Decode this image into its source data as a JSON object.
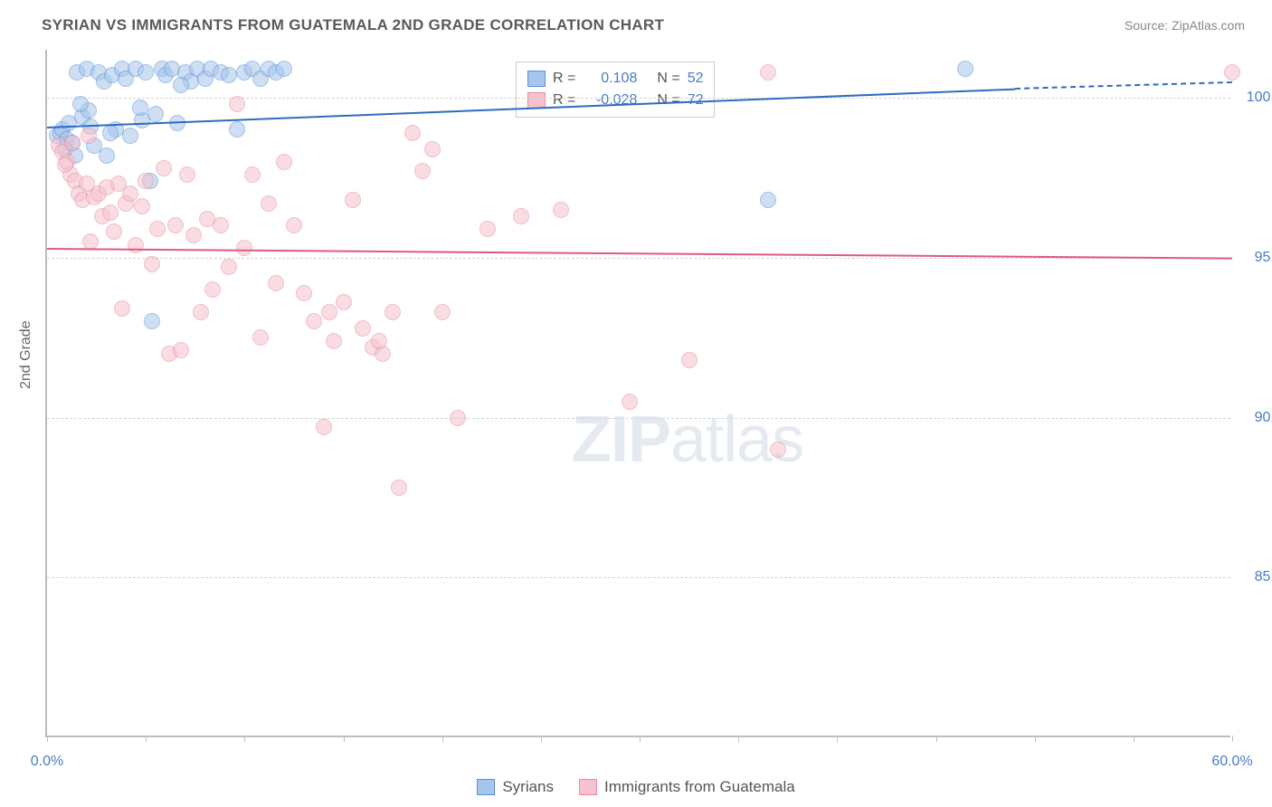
{
  "title": "SYRIAN VS IMMIGRANTS FROM GUATEMALA 2ND GRADE CORRELATION CHART",
  "source": "Source: ZipAtlas.com",
  "y_axis_label": "2nd Grade",
  "watermark_zip": "ZIP",
  "watermark_atlas": "atlas",
  "chart": {
    "type": "scatter",
    "xlim": [
      0,
      60
    ],
    "ylim": [
      80,
      101.5
    ],
    "x_ticks": [
      0,
      5,
      10,
      15,
      20,
      25,
      30,
      35,
      40,
      45,
      50,
      55,
      60
    ],
    "x_tick_labels": {
      "0": "0.0%",
      "60": "60.0%"
    },
    "y_grid": [
      85,
      90,
      95,
      100
    ],
    "y_tick_labels": {
      "85": "85.0%",
      "90": "90.0%",
      "95": "95.0%",
      "100": "100.0%"
    },
    "background_color": "#ffffff",
    "grid_color": "#d4d4d4",
    "axis_color": "#bdbdbd",
    "label_color": "#4a7bc8",
    "marker_radius": 9,
    "marker_opacity": 0.55
  },
  "series": [
    {
      "name": "Syrians",
      "fill_color": "#a7c5ec",
      "stroke_color": "#5a8fd4",
      "line_color": "#2d6bc0",
      "R": "0.108",
      "N": "52",
      "trend": {
        "x1": 0,
        "y1": 99.1,
        "x2": 49,
        "y2": 100.3,
        "dash_x2": 60,
        "dash_y2": 100.5
      },
      "points": [
        [
          0.5,
          98.8
        ],
        [
          0.7,
          98.9
        ],
        [
          0.8,
          99.0
        ],
        [
          1.0,
          98.7
        ],
        [
          1.1,
          99.2
        ],
        [
          1.3,
          98.6
        ],
        [
          1.5,
          100.8
        ],
        [
          1.8,
          99.4
        ],
        [
          2.0,
          100.9
        ],
        [
          2.2,
          99.1
        ],
        [
          2.4,
          98.5
        ],
        [
          2.6,
          100.8
        ],
        [
          2.9,
          100.5
        ],
        [
          3.0,
          98.2
        ],
        [
          3.3,
          100.7
        ],
        [
          3.5,
          99.0
        ],
        [
          3.8,
          100.9
        ],
        [
          4.0,
          100.6
        ],
        [
          4.2,
          98.8
        ],
        [
          4.5,
          100.9
        ],
        [
          4.8,
          99.3
        ],
        [
          5.0,
          100.8
        ],
        [
          5.2,
          97.4
        ],
        [
          5.5,
          99.5
        ],
        [
          5.8,
          100.9
        ],
        [
          6.0,
          100.7
        ],
        [
          6.3,
          100.9
        ],
        [
          6.6,
          99.2
        ],
        [
          7.0,
          100.8
        ],
        [
          7.3,
          100.5
        ],
        [
          7.6,
          100.9
        ],
        [
          8.0,
          100.6
        ],
        [
          8.3,
          100.9
        ],
        [
          8.8,
          100.8
        ],
        [
          9.2,
          100.7
        ],
        [
          9.6,
          99.0
        ],
        [
          10.0,
          100.8
        ],
        [
          10.4,
          100.9
        ],
        [
          10.8,
          100.6
        ],
        [
          11.2,
          100.9
        ],
        [
          11.6,
          100.8
        ],
        [
          12.0,
          100.9
        ],
        [
          5.3,
          93.0
        ],
        [
          0.9,
          98.4
        ],
        [
          1.4,
          98.2
        ],
        [
          2.1,
          99.6
        ],
        [
          3.2,
          98.9
        ],
        [
          4.7,
          99.7
        ],
        [
          36.5,
          96.8
        ],
        [
          46.5,
          100.9
        ],
        [
          6.8,
          100.4
        ],
        [
          1.7,
          99.8
        ]
      ]
    },
    {
      "name": "Immigrants from Guatemala",
      "fill_color": "#f5c2cd",
      "stroke_color": "#e68ba0",
      "line_color": "#e05a7e",
      "R": "-0.028",
      "N": "72",
      "trend": {
        "x1": 0,
        "y1": 95.3,
        "x2": 60,
        "y2": 95.0
      },
      "points": [
        [
          0.6,
          98.5
        ],
        [
          0.8,
          98.3
        ],
        [
          1.0,
          98.0
        ],
        [
          1.2,
          97.6
        ],
        [
          1.4,
          97.4
        ],
        [
          1.6,
          97.0
        ],
        [
          1.8,
          96.8
        ],
        [
          2.0,
          97.3
        ],
        [
          2.2,
          95.5
        ],
        [
          2.4,
          96.9
        ],
        [
          2.6,
          97.0
        ],
        [
          2.8,
          96.3
        ],
        [
          3.0,
          97.2
        ],
        [
          3.2,
          96.4
        ],
        [
          3.4,
          95.8
        ],
        [
          3.6,
          97.3
        ],
        [
          3.8,
          93.4
        ],
        [
          4.0,
          96.7
        ],
        [
          4.2,
          97.0
        ],
        [
          4.5,
          95.4
        ],
        [
          4.8,
          96.6
        ],
        [
          5.0,
          97.4
        ],
        [
          5.3,
          94.8
        ],
        [
          5.6,
          95.9
        ],
        [
          5.9,
          97.8
        ],
        [
          6.2,
          92.0
        ],
        [
          6.5,
          96.0
        ],
        [
          6.8,
          92.1
        ],
        [
          7.1,
          97.6
        ],
        [
          7.4,
          95.7
        ],
        [
          7.8,
          93.3
        ],
        [
          8.1,
          96.2
        ],
        [
          8.4,
          94.0
        ],
        [
          8.8,
          96.0
        ],
        [
          9.2,
          94.7
        ],
        [
          9.6,
          99.8
        ],
        [
          10.0,
          95.3
        ],
        [
          10.4,
          97.6
        ],
        [
          10.8,
          92.5
        ],
        [
          11.2,
          96.7
        ],
        [
          11.6,
          94.2
        ],
        [
          12.0,
          98.0
        ],
        [
          12.5,
          96.0
        ],
        [
          13.0,
          93.9
        ],
        [
          13.5,
          93.0
        ],
        [
          14.0,
          89.7
        ],
        [
          14.5,
          92.4
        ],
        [
          15.0,
          93.6
        ],
        [
          15.5,
          96.8
        ],
        [
          16.0,
          92.8
        ],
        [
          16.5,
          92.2
        ],
        [
          17.0,
          92.0
        ],
        [
          17.5,
          93.3
        ],
        [
          17.8,
          87.8
        ],
        [
          18.5,
          98.9
        ],
        [
          19.0,
          97.7
        ],
        [
          19.5,
          98.4
        ],
        [
          20.0,
          93.3
        ],
        [
          20.8,
          90.0
        ],
        [
          22.3,
          95.9
        ],
        [
          24.0,
          96.3
        ],
        [
          26.0,
          96.5
        ],
        [
          29.5,
          90.5
        ],
        [
          32.5,
          91.8
        ],
        [
          36.5,
          100.8
        ],
        [
          37.0,
          89.0
        ],
        [
          60.0,
          100.8
        ],
        [
          0.9,
          97.9
        ],
        [
          1.3,
          98.6
        ],
        [
          2.1,
          98.8
        ],
        [
          14.3,
          93.3
        ],
        [
          16.8,
          92.4
        ]
      ]
    }
  ],
  "legend_labels": {
    "R_prefix": "R =",
    "N_prefix": "N ="
  },
  "bottom_legend": {
    "series1": "Syrians",
    "series2": "Immigrants from Guatemala"
  }
}
